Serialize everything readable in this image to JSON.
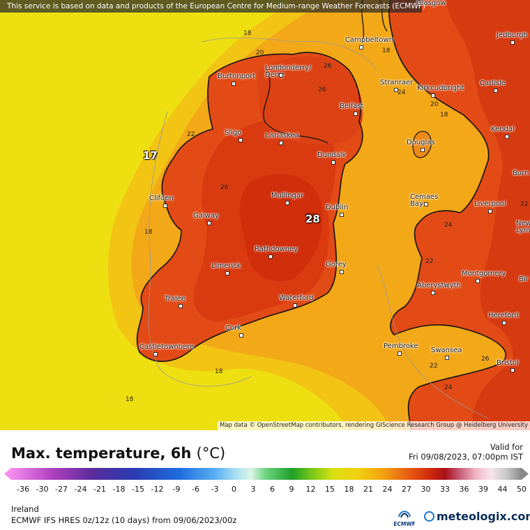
{
  "banner": "This service is based on data and products of the European Centre for Medium-range Weather Forecasts (ECMWF)",
  "attribution": "Map data © OpenStreetMap contributors, rendering GIScience Research Group @ Heidelberg University",
  "title": "Max. temperature, 6h",
  "unit": "(°C)",
  "valid_label": "Valid for",
  "valid_time": "Fri 09/08/2023, 07:00pm IST",
  "region": "Ireland",
  "model": "ECMWF IFS HRES 0z/12z (10 days) from 09/06/2023/00z",
  "ecmwf_logo_text": "ECMWF",
  "brand": "meteologix.com",
  "scale_ticks": [
    "-36",
    "-30",
    "-27",
    "-24",
    "-21",
    "-18",
    "-15",
    "-12",
    "-9",
    "-6",
    "-3",
    "0",
    "3",
    "6",
    "9",
    "12",
    "15",
    "18",
    "21",
    "24",
    "27",
    "30",
    "33",
    "36",
    "39",
    "44",
    "50"
  ],
  "cities": [
    {
      "name": "Glasgow"
    },
    {
      "name": "Jedburgh"
    },
    {
      "name": "Campbeltown"
    },
    {
      "name": "Londonderry/\nDerry"
    },
    {
      "name": "Burtonport"
    },
    {
      "name": "Stranraer"
    },
    {
      "name": "Kirkcudbright"
    },
    {
      "name": "Carlisle"
    },
    {
      "name": "Belfast"
    },
    {
      "name": "Sligo"
    },
    {
      "name": "Lisnaskea"
    },
    {
      "name": "Kendal"
    },
    {
      "name": "Douglas"
    },
    {
      "name": "Dundalk"
    },
    {
      "name": "Burn"
    },
    {
      "name": "Clifden"
    },
    {
      "name": "Mullingar"
    },
    {
      "name": "Cemaes\nBay"
    },
    {
      "name": "Liverpool"
    },
    {
      "name": "Dublin"
    },
    {
      "name": "Galway"
    },
    {
      "name": "Newca\nLym"
    },
    {
      "name": "Rathdowney"
    },
    {
      "name": "Limerick"
    },
    {
      "name": "Gorey"
    },
    {
      "name": "Montgomery"
    },
    {
      "name": "Aberystwyth"
    },
    {
      "name": "Bir"
    },
    {
      "name": "Waterford"
    },
    {
      "name": "Tralee"
    },
    {
      "name": "Hereford"
    },
    {
      "name": "Cork"
    },
    {
      "name": "Castletownbere"
    },
    {
      "name": "Pembroke"
    },
    {
      "name": "Swansea"
    },
    {
      "name": "Bristol"
    }
  ],
  "isolines": [
    "18",
    "20",
    "26",
    "26",
    "24",
    "20",
    "18",
    "22",
    "26",
    "22",
    "18",
    "24",
    "20",
    "22",
    "26",
    "22",
    "18",
    "18",
    "24",
    "18"
  ],
  "extremes": {
    "max": "28",
    "min": "17"
  },
  "colors": {
    "sea_warm": "#ecdc12",
    "land_hot": "#e03f14",
    "land_peak": "#d42f0c",
    "coast": "#111111"
  }
}
